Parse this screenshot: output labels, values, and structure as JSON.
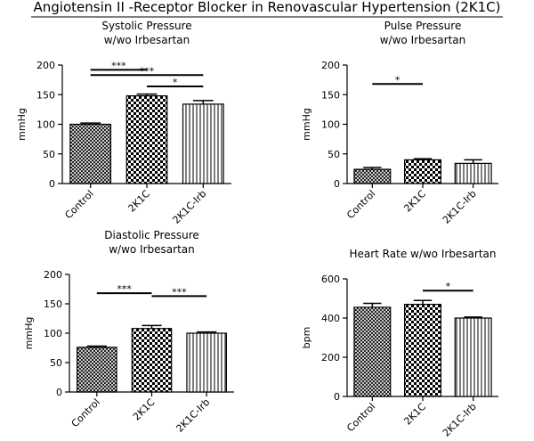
{
  "title": "Angiotensin II -Receptor Blocker in Renovascular Hypertension (2K1C)",
  "chart_data": [
    {
      "type": "bar",
      "title": [
        "Systolic Pressure",
        "w/wo Irbesartan"
      ],
      "y_label": "mmHg",
      "categories": [
        "Control",
        "2K1C",
        "2K1C-Irb"
      ],
      "values": [
        100,
        148,
        134
      ],
      "errors": [
        2,
        3,
        6
      ],
      "patterns": [
        "crosshatch",
        "checker",
        "stripes"
      ],
      "color": "#000000",
      "ylim": [
        0,
        200
      ],
      "yticks": [
        0,
        50,
        100,
        150,
        200
      ],
      "annotations": [
        {
          "text": "***",
          "from": 0,
          "to": 1,
          "y": 192
        },
        {
          "text": "***",
          "from": 0,
          "to": 2,
          "y": 183
        },
        {
          "text": "*",
          "from": 1,
          "to": 2,
          "y": 164
        }
      ]
    },
    {
      "type": "bar",
      "title": [
        "Pulse Pressure",
        "w/wo Irbesartan"
      ],
      "y_label": "mmHg",
      "categories": [
        "Control",
        "2K1C",
        "2K1C-Irb"
      ],
      "values": [
        24,
        40,
        34
      ],
      "errors": [
        3,
        2,
        6
      ],
      "patterns": [
        "crosshatch",
        "checker",
        "stripes"
      ],
      "color": "#000000",
      "ylim": [
        0,
        200
      ],
      "yticks": [
        0,
        50,
        100,
        150,
        200
      ],
      "annotations": [
        {
          "text": "*",
          "from": 0,
          "to": 1,
          "y": 168
        }
      ]
    },
    {
      "type": "bar",
      "title": [
        "Diastolic Pressure",
        "w/wo Irbesartan"
      ],
      "y_label": "mmHg",
      "categories": [
        "Control",
        "2K1C",
        "2K1C-Irb"
      ],
      "values": [
        76,
        108,
        100
      ],
      "errors": [
        2,
        5,
        2
      ],
      "patterns": [
        "crosshatch",
        "checker",
        "stripes"
      ],
      "color": "#000000",
      "ylim": [
        0,
        200
      ],
      "yticks": [
        0,
        50,
        100,
        150,
        200
      ],
      "annotations": [
        {
          "text": "***",
          "from": 0,
          "to": 1,
          "y": 168
        },
        {
          "text": "***",
          "from": 1,
          "to": 2,
          "y": 163
        }
      ]
    },
    {
      "type": "bar",
      "title": [
        "Heart Rate w/wo Irbesartan"
      ],
      "y_label": "bpm",
      "categories": [
        "Control",
        "2K1C",
        "2K1C-Irb"
      ],
      "values": [
        455,
        470,
        400
      ],
      "errors": [
        20,
        20,
        5
      ],
      "patterns": [
        "crosshatch",
        "checker",
        "stripes"
      ],
      "color": "#000000",
      "ylim": [
        0,
        600
      ],
      "yticks": [
        0,
        200,
        400,
        600
      ],
      "annotations": [
        {
          "text": "*",
          "from": 1,
          "to": 2,
          "y": 540
        }
      ]
    }
  ]
}
